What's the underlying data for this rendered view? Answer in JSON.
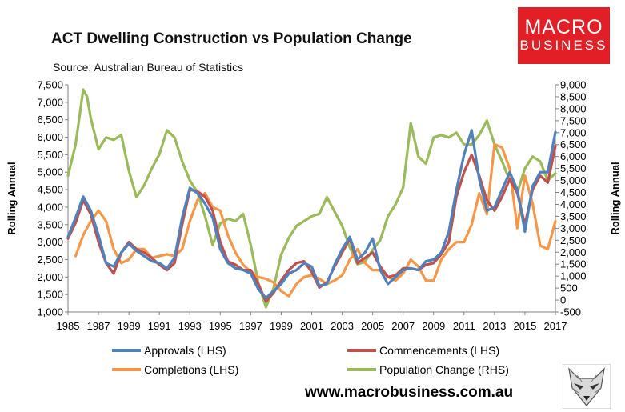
{
  "header": {
    "title": "ACT Dwelling Construction vs Population Change",
    "subtitle": "Source: Australian Bureau of Statistics"
  },
  "logo": {
    "line1": "MACRO",
    "line2": "BUSINESS"
  },
  "footer": {
    "url": "www.macrobusiness.com.au"
  },
  "colors": {
    "approvals": "#4f81bd",
    "commencements": "#c0504d",
    "completions": "#f79646",
    "population": "#9bbb59",
    "logo_bg": "#e21f26"
  },
  "chart_data": {
    "type": "line",
    "title": "ACT Dwelling Construction vs Population Change",
    "xlabel": "",
    "ylabel_left": "Rolling Annual",
    "ylabel_right": "Rolling Annual",
    "xlim": [
      1985,
      2017
    ],
    "ylim_left": [
      1000,
      7500
    ],
    "ylim_right": [
      -500,
      9000
    ],
    "x_ticks": [
      "1985",
      "1987",
      "1989",
      "1991",
      "1993",
      "1995",
      "1997",
      "1999",
      "2001",
      "2003",
      "2005",
      "2007",
      "2009",
      "2011",
      "2013",
      "2015",
      "2017"
    ],
    "y_ticks_left": [
      "7,500",
      "7,000",
      "6,500",
      "6,000",
      "5,500",
      "5,000",
      "4,500",
      "4,000",
      "3,500",
      "3,000",
      "2,500",
      "2,000",
      "1,500",
      "1,000"
    ],
    "y_ticks_right": [
      "9,000",
      "8,500",
      "8,000",
      "7,500",
      "7,000",
      "6,500",
      "6,000",
      "5,500",
      "5,000",
      "4,500",
      "4,000",
      "3,500",
      "3,000",
      "2,500",
      "2,000",
      "1,500",
      "1,000",
      "500",
      "0",
      "-500"
    ],
    "legend_position": "bottom",
    "series": [
      {
        "name": "Approvals (LHS)",
        "axis": "left",
        "key": "approvals",
        "x": [
          1985,
          1985.5,
          1986,
          1986.5,
          1987,
          1987.5,
          1988,
          1988.5,
          1989,
          1989.5,
          1990,
          1990.5,
          1991,
          1991.5,
          1992,
          1992.5,
          1993,
          1993.5,
          1994,
          1994.5,
          1995,
          1995.5,
          1996,
          1996.5,
          1997,
          1997.5,
          1998,
          1998.5,
          1999,
          1999.5,
          2000,
          2000.5,
          2001,
          2001.5,
          2002,
          2002.5,
          2003,
          2003.5,
          2004,
          2004.5,
          2005,
          2005.5,
          2006,
          2006.5,
          2007,
          2007.5,
          2008,
          2008.5,
          2009,
          2009.5,
          2010,
          2010.5,
          2011,
          2011.5,
          2012,
          2012.5,
          2013,
          2013.5,
          2014,
          2014.5,
          2015,
          2015.5,
          2016,
          2016.5,
          2017
        ],
        "values": [
          3150,
          3700,
          4300,
          3900,
          3200,
          2400,
          2300,
          2700,
          2950,
          2750,
          2600,
          2450,
          2400,
          2250,
          2550,
          3700,
          4550,
          4400,
          4100,
          3700,
          2800,
          2400,
          2250,
          2200,
          2100,
          1650,
          1400,
          1600,
          1800,
          2100,
          2200,
          2400,
          2300,
          1750,
          1800,
          2350,
          2800,
          3150,
          2500,
          2700,
          3100,
          2200,
          1800,
          2000,
          2200,
          2250,
          2200,
          2450,
          2500,
          2700,
          3300,
          4500,
          5500,
          6200,
          4800,
          3900,
          4000,
          4500,
          5000,
          4500,
          3300,
          4600,
          5000,
          5000,
          6150
        ]
      },
      {
        "name": "Commencements (LHS)",
        "axis": "left",
        "key": "commencements",
        "x": [
          1985,
          1985.5,
          1986,
          1986.5,
          1987,
          1987.5,
          1988,
          1988.5,
          1989,
          1989.5,
          1990,
          1990.5,
          1991,
          1991.5,
          1992,
          1992.5,
          1993,
          1993.5,
          1994,
          1994.5,
          1995,
          1995.5,
          1996,
          1996.5,
          1997,
          1997.5,
          1998,
          1998.5,
          1999,
          1999.5,
          2000,
          2000.5,
          2001,
          2001.5,
          2002,
          2002.5,
          2003,
          2003.5,
          2004,
          2004.5,
          2005,
          2005.5,
          2006,
          2006.5,
          2007,
          2007.5,
          2008,
          2008.5,
          2009,
          2009.5,
          2010,
          2010.5,
          2011,
          2011.5,
          2012,
          2012.5,
          2013,
          2013.5,
          2014,
          2014.5,
          2015,
          2015.5,
          2016,
          2016.5,
          2017
        ],
        "values": [
          3100,
          3550,
          4200,
          3800,
          3000,
          2400,
          2100,
          2700,
          3000,
          2800,
          2700,
          2550,
          2350,
          2200,
          2400,
          3500,
          4500,
          4450,
          4300,
          3900,
          3000,
          2450,
          2350,
          2200,
          2200,
          1800,
          1300,
          1550,
          1900,
          2200,
          2400,
          2450,
          2150,
          1700,
          1850,
          2300,
          2700,
          3100,
          2400,
          2550,
          2700,
          2300,
          2000,
          2050,
          2250,
          2250,
          2200,
          2350,
          2400,
          2650,
          3000,
          4300,
          5000,
          5500,
          4900,
          4200,
          3900,
          4300,
          4800,
          4400,
          3500,
          4500,
          4900,
          4700,
          5750
        ]
      },
      {
        "name": "Completions (LHS)",
        "axis": "left",
        "key": "completions",
        "x": [
          1985.5,
          1986,
          1986.5,
          1987,
          1987.5,
          1988,
          1988.5,
          1989,
          1989.5,
          1990,
          1990.5,
          1991,
          1991.5,
          1992,
          1992.5,
          1993,
          1993.5,
          1994,
          1994.5,
          1995,
          1995.5,
          1996,
          1996.5,
          1997,
          1997.5,
          1998,
          1998.5,
          1999,
          1999.5,
          2000,
          2000.5,
          2001,
          2001.5,
          2002,
          2002.5,
          2003,
          2003.5,
          2004,
          2004.5,
          2005,
          2005.5,
          2006,
          2006.5,
          2007,
          2007.5,
          2008,
          2008.5,
          2009,
          2009.5,
          2010,
          2010.5,
          2011,
          2011.5,
          2012,
          2012.5,
          2013,
          2013.5,
          2014,
          2014.5,
          2015,
          2015.5,
          2016,
          2016.5,
          2017
        ],
        "values": [
          2600,
          3200,
          3600,
          3900,
          3600,
          2800,
          2400,
          2500,
          2800,
          2800,
          2550,
          2600,
          2650,
          2600,
          2800,
          3600,
          4200,
          4400,
          4000,
          3900,
          3200,
          2700,
          2350,
          2150,
          2000,
          1950,
          1850,
          1600,
          1450,
          1800,
          2000,
          2050,
          1950,
          1800,
          1900,
          2050,
          2500,
          2800,
          2400,
          2200,
          2200,
          2000,
          1900,
          2100,
          2500,
          2300,
          1900,
          1900,
          2500,
          2800,
          3000,
          3000,
          3500,
          4400,
          3800,
          5800,
          5700,
          5100,
          3400,
          4900,
          4100,
          2900,
          2800,
          3600
        ]
      },
      {
        "name": "Population Change (RHS)",
        "axis": "right",
        "key": "population",
        "x": [
          1985,
          1985.5,
          1986,
          1986.25,
          1986.5,
          1987,
          1987.5,
          1988,
          1988.5,
          1989,
          1989.5,
          1990,
          1990.5,
          1991,
          1991.5,
          1992,
          1992.5,
          1993,
          1993.5,
          1994,
          1994.5,
          1995,
          1995.5,
          1996,
          1996.5,
          1997,
          1997.5,
          1998,
          1998.5,
          1999,
          1999.5,
          2000,
          2000.5,
          2001,
          2001.5,
          2002,
          2002.5,
          2003,
          2003.5,
          2004,
          2004.5,
          2005,
          2005.5,
          2006,
          2006.5,
          2007,
          2007.5,
          2008,
          2008.5,
          2009,
          2009.5,
          2010,
          2010.5,
          2011,
          2011.5,
          2012,
          2012.5,
          2013,
          2013.5,
          2014,
          2014.5,
          2015,
          2015.5,
          2016,
          2016.5,
          2017
        ],
        "values": [
          5200,
          6500,
          8800,
          8500,
          7600,
          6300,
          6800,
          6700,
          6900,
          5400,
          4300,
          4800,
          5500,
          6100,
          7100,
          6800,
          5800,
          5000,
          4500,
          3500,
          2300,
          3200,
          3400,
          3300,
          3600,
          2300,
          700,
          -300,
          500,
          1900,
          2600,
          3100,
          3300,
          3500,
          3600,
          4300,
          3700,
          3100,
          2200,
          1500,
          1600,
          2100,
          2500,
          3500,
          4000,
          4700,
          7400,
          6000,
          5700,
          6800,
          6900,
          6800,
          7000,
          6500,
          6500,
          6900,
          7500,
          6500,
          5800,
          5000,
          4500,
          5500,
          6000,
          5800,
          5000,
          5300
        ]
      }
    ]
  }
}
